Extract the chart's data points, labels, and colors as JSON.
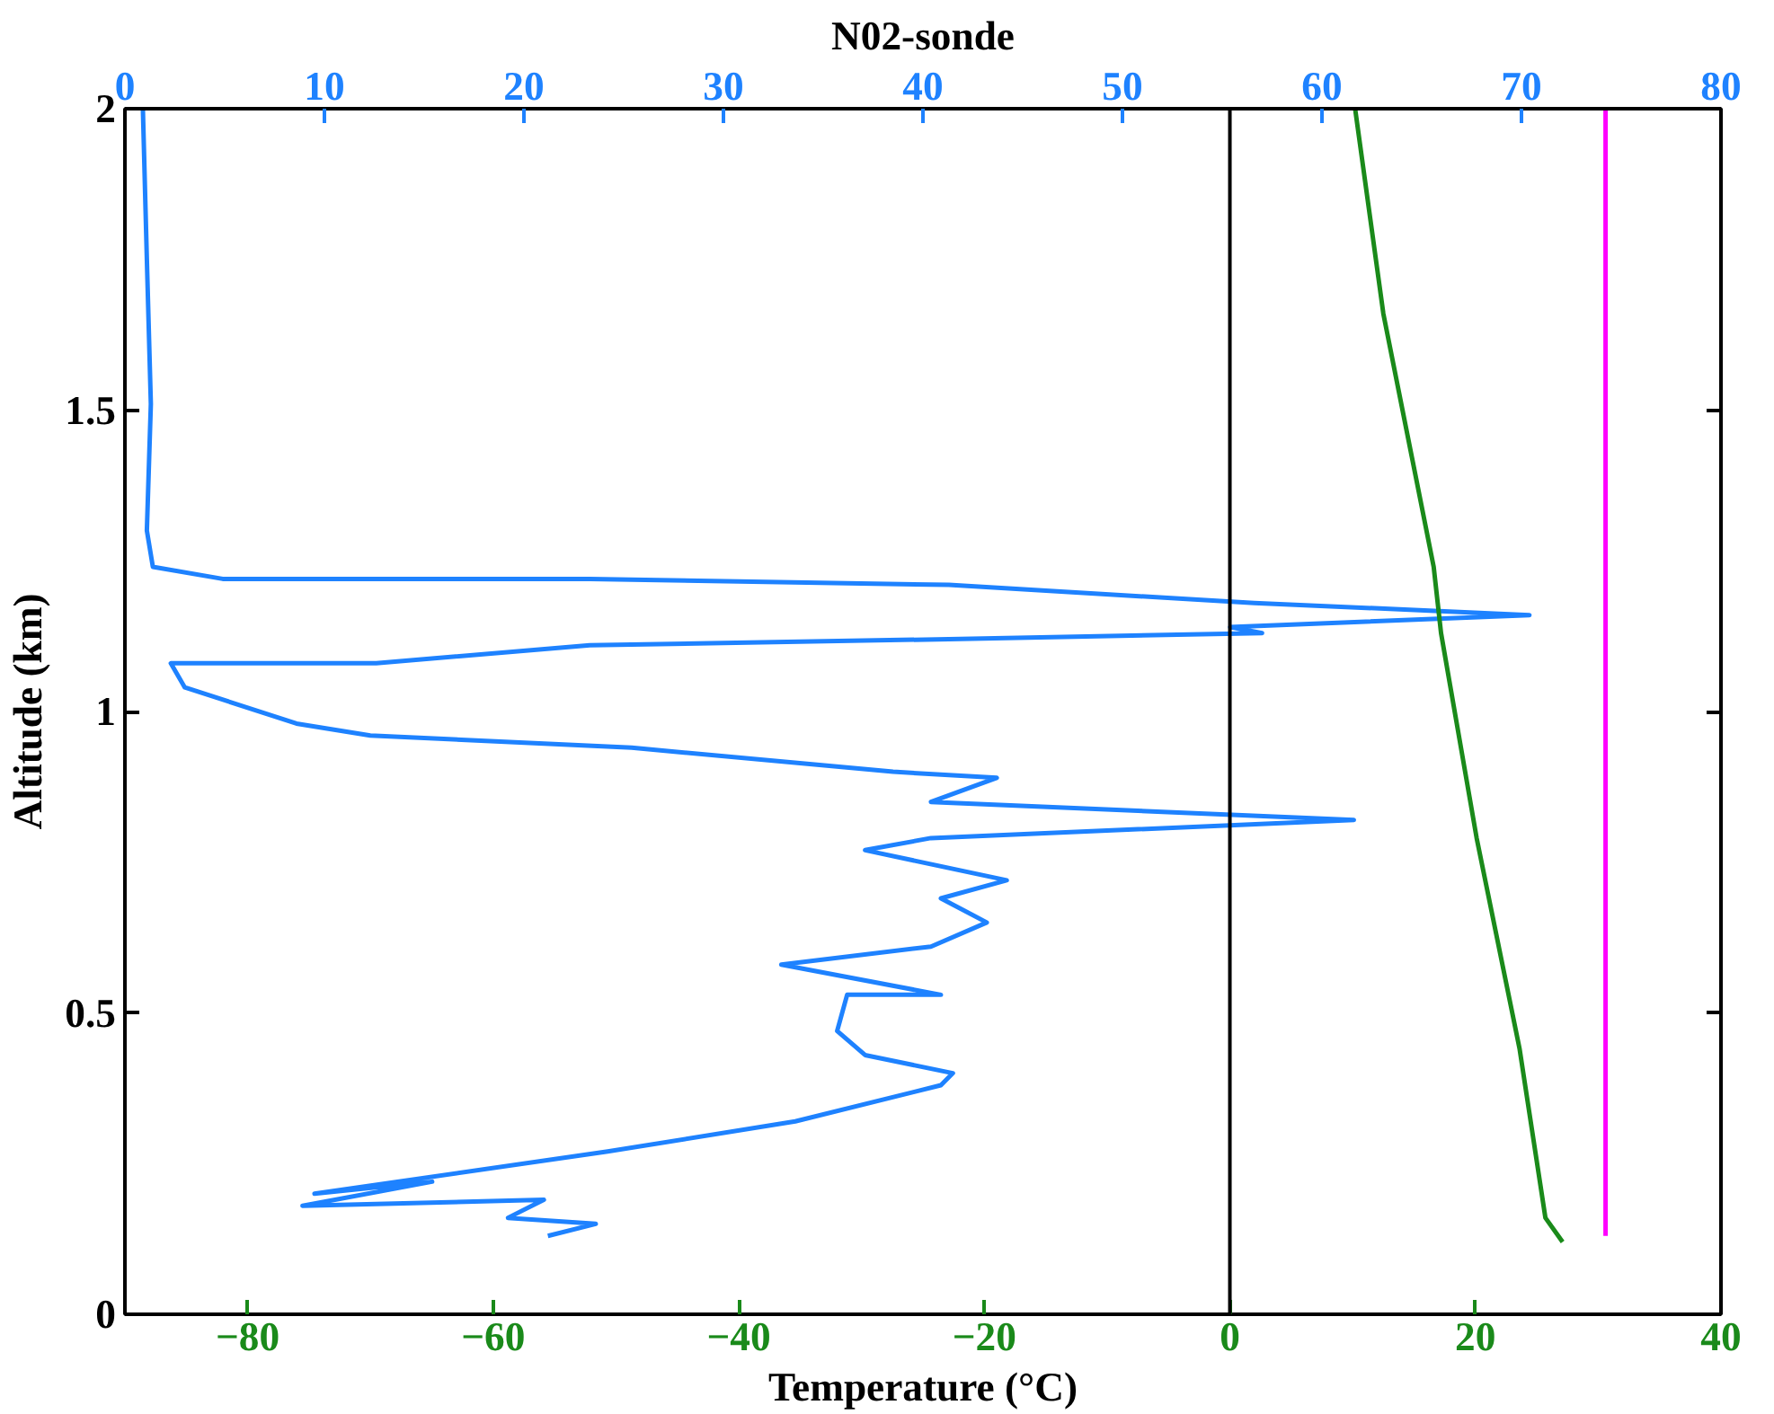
{
  "chart_data": {
    "type": "line",
    "title": "N02-sonde",
    "xlabel": "Temperature (°C)",
    "ylabel": "Altitude (km)",
    "xlim": [
      -90,
      40
    ],
    "xticks": [
      -80,
      -60,
      -40,
      -20,
      0,
      20,
      40
    ],
    "x2lim": [
      0,
      80
    ],
    "x2ticks": [
      0,
      10,
      20,
      30,
      40,
      50,
      60,
      70,
      80
    ],
    "ylim": [
      0,
      2
    ],
    "yticks": [
      0,
      0.5,
      1,
      1.5,
      2
    ],
    "grid": false,
    "marker": "none",
    "line_style": "solid",
    "ref_lines": [
      {
        "axis": "x",
        "value": 0,
        "color": "#000000"
      }
    ],
    "series": [
      {
        "color": "#1e82ff",
        "axis": "x2",
        "x": [
          21.2,
          23.6,
          19.2,
          21.0,
          8.9,
          15.4,
          9.5,
          24.2,
          33.6,
          40.9,
          41.5,
          37.1,
          35.7,
          36.2,
          40.9,
          32.9,
          40.4,
          43.2,
          40.9,
          44.2,
          37.1,
          40.4,
          61.6,
          40.4,
          43.7,
          38.5,
          25.4,
          12.3,
          8.6,
          3.0,
          2.3,
          12.6,
          23.3,
          41.3,
          57.0,
          55.4,
          70.4,
          56.6,
          41.3,
          23.3,
          4.9,
          1.4,
          1.1,
          1.3,
          1.1,
          0.9
        ],
        "values": [
          0.13,
          0.15,
          0.16,
          0.19,
          0.18,
          0.22,
          0.2,
          0.27,
          0.32,
          0.38,
          0.4,
          0.43,
          0.47,
          0.53,
          0.53,
          0.58,
          0.61,
          0.65,
          0.69,
          0.72,
          0.77,
          0.79,
          0.82,
          0.85,
          0.89,
          0.9,
          0.94,
          0.96,
          0.98,
          1.04,
          1.08,
          1.08,
          1.11,
          1.12,
          1.13,
          1.14,
          1.16,
          1.18,
          1.21,
          1.22,
          1.22,
          1.24,
          1.3,
          1.51,
          1.75,
          2.0
        ]
      },
      {
        "color": "#1a8a1a",
        "x": [
          27.1,
          25.7,
          23.6,
          20.1,
          17.2,
          16.6,
          12.5,
          10.2
        ],
        "values": [
          0.12,
          0.16,
          0.44,
          0.79,
          1.13,
          1.24,
          1.66,
          2.0
        ]
      },
      {
        "color": "#ff00ff",
        "x": [
          30.6,
          30.6
        ],
        "values": [
          0.13,
          2.0
        ]
      }
    ]
  }
}
